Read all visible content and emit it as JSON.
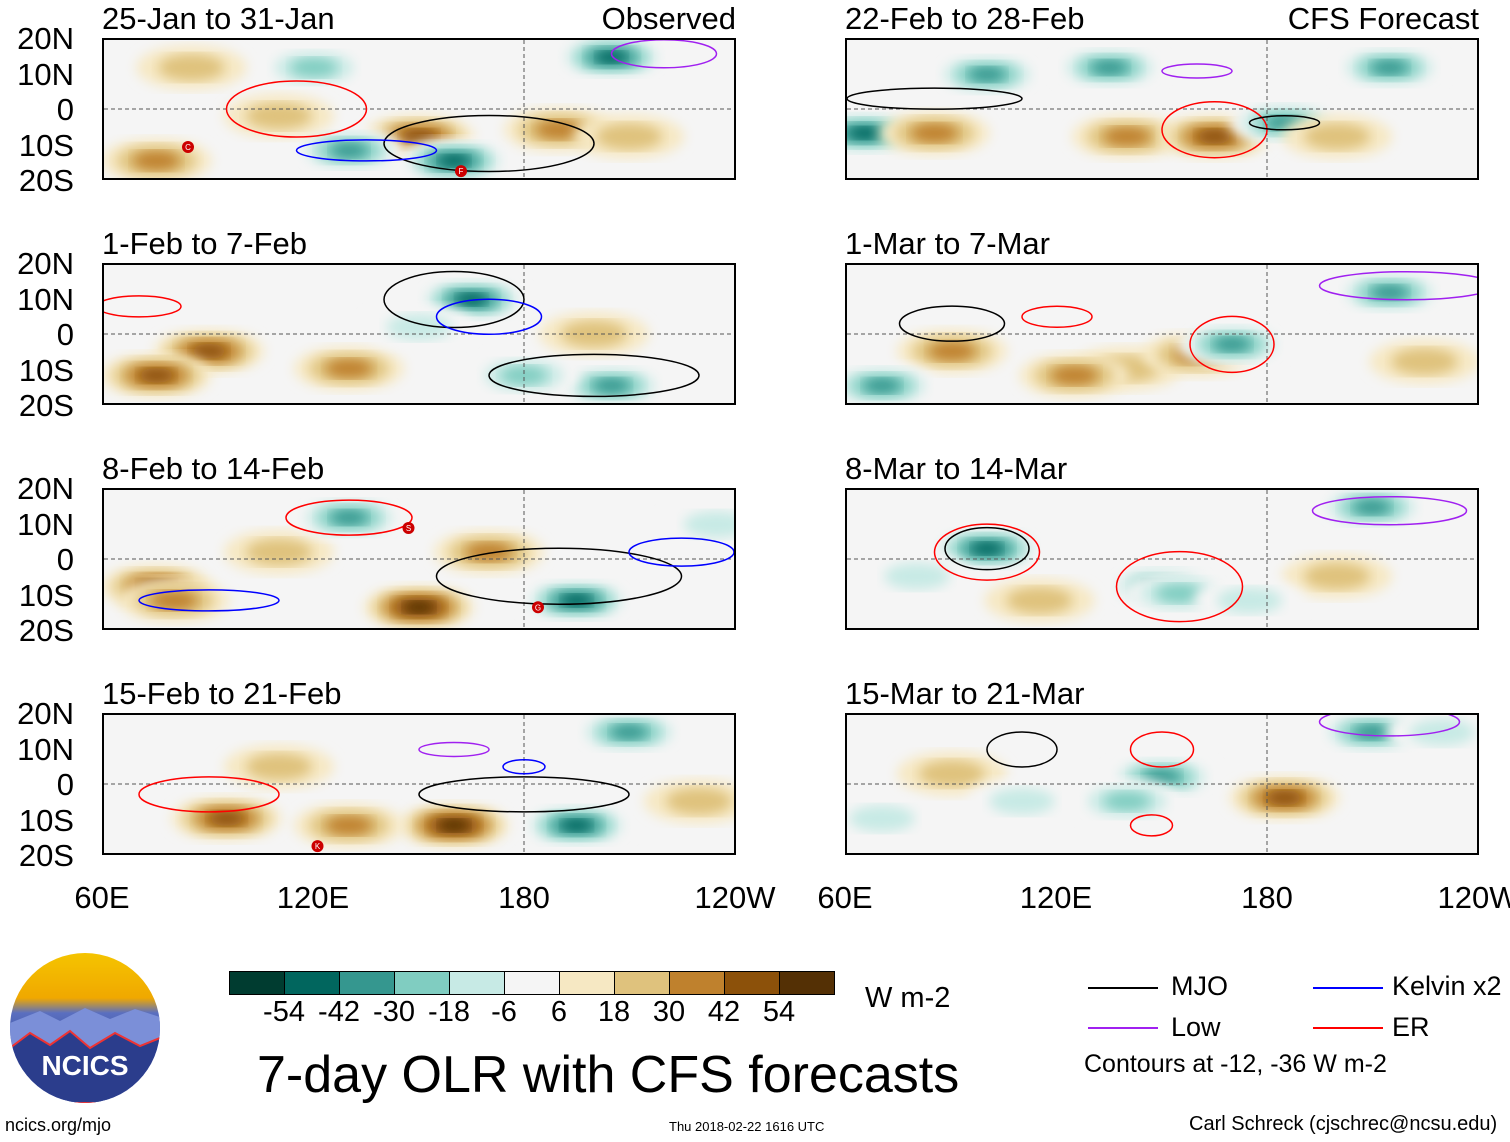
{
  "labels": {
    "observed": "Observed",
    "forecast": "CFS Forecast"
  },
  "lat_ticks": [
    "20N",
    "10N",
    "0",
    "10S",
    "20S"
  ],
  "lon_ticks": [
    "60E",
    "120E",
    "180",
    "120W"
  ],
  "colorbar": {
    "ticks": [
      "-54",
      "-42",
      "-30",
      "-18",
      "-6",
      "6",
      "18",
      "30",
      "42",
      "54"
    ],
    "colors": [
      "#003c30",
      "#01665e",
      "#35978f",
      "#80cdc1",
      "#c7eae5",
      "#f5f5f5",
      "#f6e8c3",
      "#dfc27d",
      "#bf812d",
      "#8c510a",
      "#543005"
    ],
    "units": "W m-2"
  },
  "title": "7-day OLR with CFS forecasts",
  "timestamp": "Thu 2018-02-22 1616 UTC",
  "legend": {
    "items": [
      {
        "label": "MJO",
        "color": "#000000"
      },
      {
        "label": "Kelvin x2",
        "color": "#0000ff"
      },
      {
        "label": "Low",
        "color": "#a020f0"
      },
      {
        "label": "ER",
        "color": "#ff0000"
      }
    ],
    "note": "Contours at -12, -36 W m-2"
  },
  "credit": "Carl Schreck (cjschrec@ncsu.edu)",
  "url": "ncics.org/mjo",
  "logo_text": "NCICS",
  "panels": [
    {
      "title": "25-Jan to 31-Jan",
      "blobs": [
        [
          150,
          -8,
          42
        ],
        [
          190,
          -6,
          30
        ],
        [
          210,
          -8,
          18
        ],
        [
          130,
          -12,
          -42
        ],
        [
          160,
          -15,
          -54
        ],
        [
          205,
          15,
          -54
        ],
        [
          75,
          -15,
          30
        ],
        [
          85,
          12,
          18
        ],
        [
          120,
          12,
          -30
        ],
        [
          110,
          -2,
          18
        ]
      ],
      "contours": [
        [
          "MJO",
          170,
          -10,
          30,
          8
        ],
        [
          "ER",
          115,
          0,
          20,
          8
        ],
        [
          "Kelvin",
          135,
          -12,
          20,
          3
        ],
        [
          "Low",
          220,
          16,
          15,
          4
        ]
      ],
      "storms": [
        [
          "C",
          84,
          -11
        ],
        [
          "F",
          162,
          -18
        ]
      ]
    },
    {
      "title": "1-Feb to 7-Feb",
      "blobs": [
        [
          90,
          -5,
          42
        ],
        [
          130,
          -10,
          30
        ],
        [
          75,
          -12,
          42
        ],
        [
          165,
          10,
          -54
        ],
        [
          205,
          -15,
          -42
        ],
        [
          180,
          -12,
          -30
        ],
        [
          200,
          0,
          18
        ],
        [
          150,
          2,
          -18
        ]
      ],
      "contours": [
        [
          "MJO",
          160,
          10,
          20,
          8
        ],
        [
          "Kelvin",
          170,
          5,
          15,
          5
        ],
        [
          "MJO",
          200,
          -12,
          30,
          6
        ],
        [
          "ER",
          70,
          8,
          12,
          3
        ]
      ],
      "storms": []
    },
    {
      "title": "8-Feb to 14-Feb",
      "blobs": [
        [
          75,
          -8,
          42
        ],
        [
          150,
          -14,
          54
        ],
        [
          110,
          2,
          18
        ],
        [
          130,
          12,
          -42
        ],
        [
          195,
          -12,
          -54
        ],
        [
          170,
          2,
          30
        ],
        [
          80,
          -12,
          30
        ],
        [
          235,
          10,
          -18
        ]
      ],
      "contours": [
        [
          "ER",
          130,
          12,
          18,
          5
        ],
        [
          "MJO",
          190,
          -5,
          35,
          8
        ],
        [
          "Kelvin",
          90,
          -12,
          20,
          3
        ],
        [
          "Kelvin",
          225,
          2,
          15,
          4
        ]
      ],
      "storms": [
        [
          "S",
          147,
          9
        ],
        [
          "G",
          184,
          -14
        ]
      ]
    },
    {
      "title": "15-Feb to 21-Feb",
      "blobs": [
        [
          95,
          -10,
          42
        ],
        [
          160,
          -12,
          54
        ],
        [
          130,
          -12,
          30
        ],
        [
          210,
          15,
          -42
        ],
        [
          195,
          -12,
          -54
        ],
        [
          110,
          5,
          18
        ],
        [
          230,
          -5,
          18
        ]
      ],
      "contours": [
        [
          "MJO",
          180,
          -3,
          30,
          5
        ],
        [
          "Low",
          160,
          10,
          10,
          2
        ],
        [
          "ER",
          90,
          -3,
          20,
          5
        ],
        [
          "Kelvin",
          180,
          5,
          6,
          2
        ]
      ],
      "storms": [
        [
          "K",
          121,
          -18
        ]
      ]
    },
    {
      "title": "22-Feb to 28-Feb",
      "blobs": [
        [
          100,
          10,
          -42
        ],
        [
          135,
          12,
          -42
        ],
        [
          65,
          -7,
          -54
        ],
        [
          85,
          -7,
          30
        ],
        [
          140,
          -8,
          30
        ],
        [
          165,
          -8,
          42
        ],
        [
          185,
          -4,
          -42
        ],
        [
          215,
          12,
          -42
        ],
        [
          200,
          -8,
          18
        ]
      ],
      "contours": [
        [
          "ER",
          165,
          -6,
          15,
          8
        ],
        [
          "MJO",
          185,
          -4,
          10,
          2
        ],
        [
          "Low",
          160,
          11,
          10,
          2
        ],
        [
          "MJO",
          85,
          3,
          25,
          3
        ]
      ],
      "storms": []
    },
    {
      "title": "1-Mar to 7-Mar",
      "blobs": [
        [
          90,
          -5,
          30
        ],
        [
          140,
          -10,
          18
        ],
        [
          160,
          -6,
          30
        ],
        [
          170,
          -3,
          -42
        ],
        [
          215,
          12,
          -42
        ],
        [
          70,
          -15,
          -42
        ],
        [
          125,
          -12,
          30
        ],
        [
          225,
          -8,
          18
        ]
      ],
      "contours": [
        [
          "ER",
          170,
          -3,
          12,
          8
        ],
        [
          "MJO",
          90,
          3,
          15,
          5
        ],
        [
          "ER",
          120,
          5,
          10,
          3
        ],
        [
          "Low",
          220,
          14,
          25,
          4
        ]
      ],
      "storms": []
    },
    {
      "title": "8-Mar to 14-Mar",
      "blobs": [
        [
          100,
          3,
          -54
        ],
        [
          150,
          -8,
          -42
        ],
        [
          155,
          -10,
          -30
        ],
        [
          210,
          15,
          -42
        ],
        [
          200,
          -5,
          18
        ],
        [
          115,
          -12,
          18
        ],
        [
          80,
          -5,
          -18
        ],
        [
          175,
          -12,
          -18
        ]
      ],
      "contours": [
        [
          "ER",
          100,
          2,
          15,
          8
        ],
        [
          "MJO",
          100,
          3,
          12,
          6
        ],
        [
          "ER",
          155,
          -8,
          18,
          10
        ],
        [
          "Low",
          215,
          14,
          22,
          4
        ]
      ],
      "storms": []
    },
    {
      "title": "15-Mar to 21-Mar",
      "blobs": [
        [
          90,
          3,
          18
        ],
        [
          185,
          -4,
          42
        ],
        [
          150,
          2,
          -42
        ],
        [
          140,
          -5,
          -30
        ],
        [
          210,
          15,
          -42
        ],
        [
          230,
          15,
          -18
        ],
        [
          70,
          -10,
          -18
        ],
        [
          110,
          -5,
          -18
        ]
      ],
      "contours": [
        [
          "ER",
          150,
          10,
          9,
          5
        ],
        [
          "ER",
          147,
          -12,
          6,
          3
        ],
        [
          "MJO",
          110,
          10,
          10,
          5
        ],
        [
          "Low",
          215,
          18,
          20,
          4
        ]
      ],
      "storms": []
    }
  ]
}
